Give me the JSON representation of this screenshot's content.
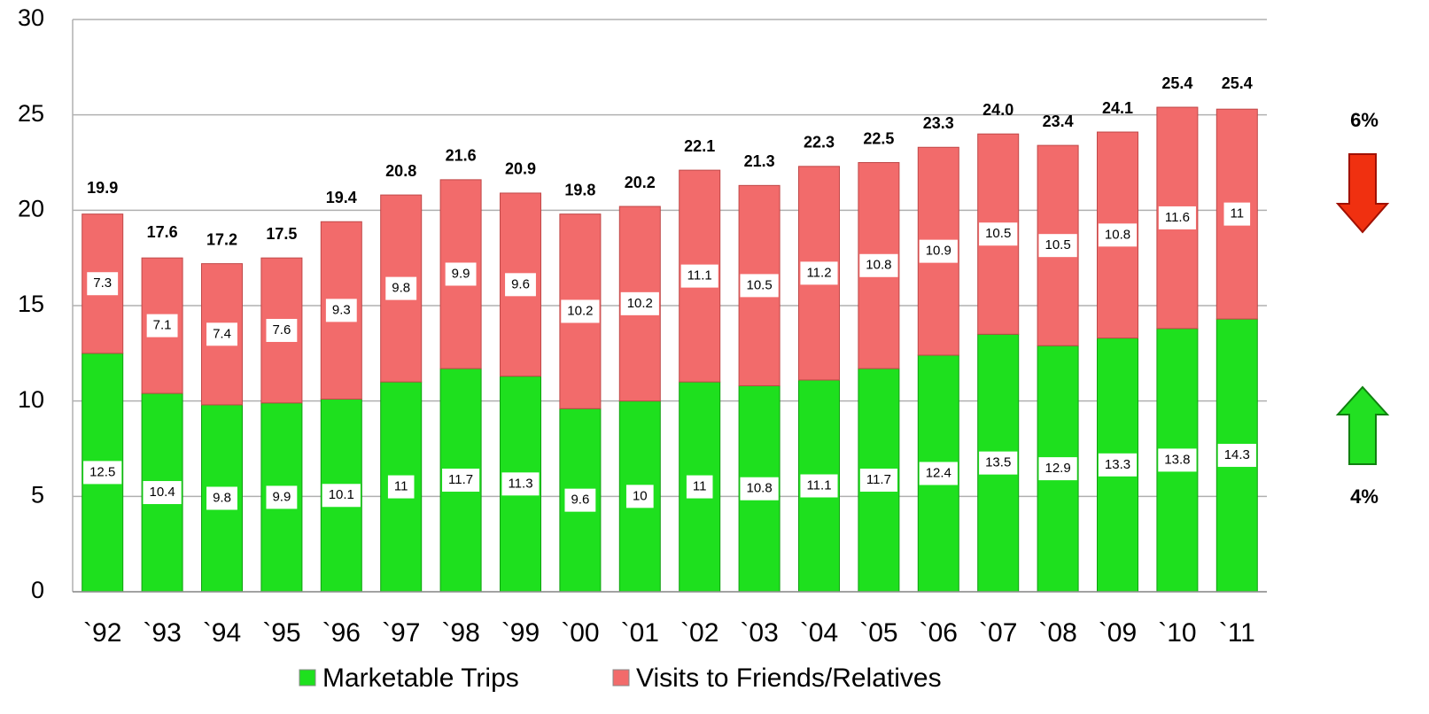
{
  "chart_data": {
    "type": "stacked_bar",
    "categories": [
      "`92",
      "`93",
      "`94",
      "`95",
      "`96",
      "`97",
      "`98",
      "`99",
      "`00",
      "`01",
      "`02",
      "`03",
      "`04",
      "`05",
      "`06",
      "`07",
      "`08",
      "`09",
      "`10",
      "`11"
    ],
    "series": [
      {
        "name": "Marketable Trips",
        "color": "#1ee01e",
        "values": [
          12.5,
          10.4,
          9.8,
          9.9,
          10.1,
          11,
          11.7,
          11.3,
          9.6,
          10,
          11,
          10.8,
          11.1,
          11.7,
          12.4,
          13.5,
          12.9,
          13.3,
          13.8,
          14.3
        ]
      },
      {
        "name": "Visits to Friends/Relatives",
        "color": "#f26b6b",
        "values": [
          7.3,
          7.1,
          7.4,
          7.6,
          9.3,
          9.8,
          9.9,
          9.6,
          10.2,
          10.2,
          11.1,
          10.5,
          11.2,
          10.8,
          10.9,
          10.5,
          10.5,
          10.8,
          11.6,
          11
        ]
      }
    ],
    "totals": {
      "values": [
        19.9,
        17.6,
        17.2,
        17.5,
        19.4,
        20.8,
        21.6,
        20.9,
        19.8,
        20.2,
        22.1,
        21.3,
        22.3,
        22.5,
        23.3,
        24.0,
        23.4,
        24.1,
        25.4,
        25.4
      ],
      "value_labels": [
        "19.9",
        "17.6",
        "17.2",
        "17.5",
        "19.4",
        "20.8",
        "21.6",
        "20.9",
        "19.8",
        "20.2",
        "22.1",
        "21.3",
        "22.3",
        "22.5",
        "23.3",
        "24.0",
        "23.4",
        "24.1",
        "25.4",
        "25.4"
      ]
    },
    "ylim": [
      0,
      30
    ],
    "yticks": [
      0,
      5,
      10,
      15,
      20,
      25,
      30
    ],
    "grid": true,
    "legend": "bottom",
    "annotations": [
      "6%",
      "4%"
    ]
  }
}
